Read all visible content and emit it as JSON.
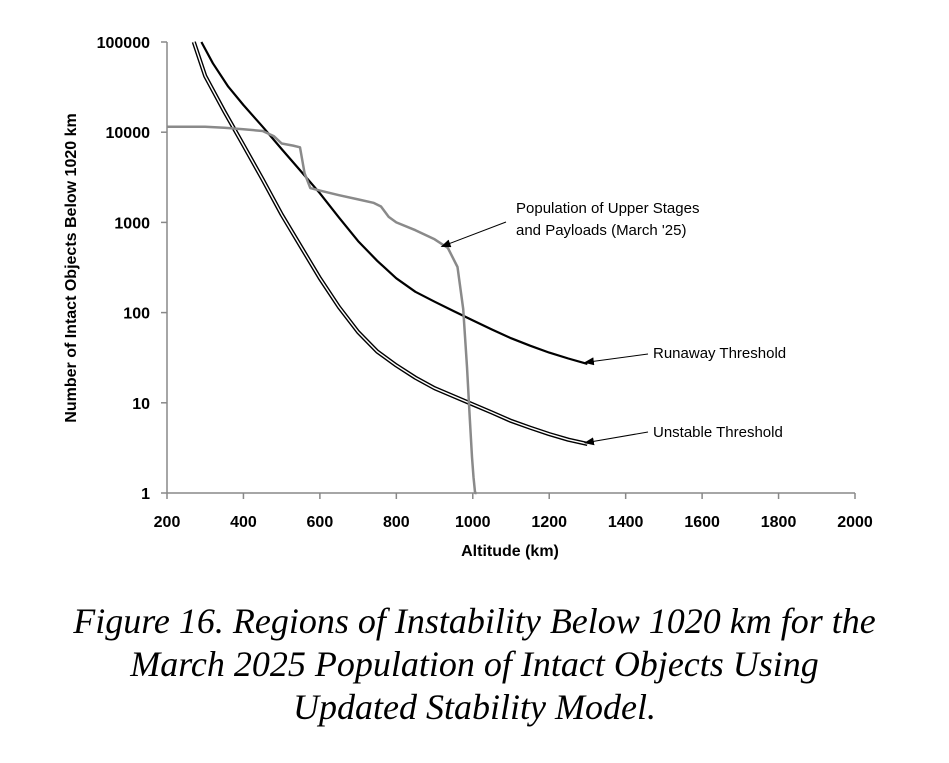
{
  "chart_data": {
    "type": "line",
    "xlabel": "Altitude (km)",
    "ylabel": "Number of Intact Objects Below 1020 km",
    "xlim": [
      200,
      2000
    ],
    "ylim": [
      1,
      100000
    ],
    "yscale": "log",
    "x_ticks": [
      "200",
      "400",
      "600",
      "800",
      "1000",
      "1200",
      "1400",
      "1600",
      "1800",
      "2000"
    ],
    "y_ticks": [
      "1",
      "10",
      "100",
      "1000",
      "10000",
      "100000"
    ],
    "series": [
      {
        "name": "Runaway Threshold",
        "style": "solid-black",
        "x": [
          290,
          320,
          360,
          400,
          450,
          500,
          550,
          600,
          650,
          700,
          750,
          800,
          850,
          900,
          950,
          1000,
          1050,
          1100,
          1150,
          1200,
          1250,
          1300
        ],
        "y": [
          100000,
          58000,
          32000,
          20000,
          11500,
          6500,
          3700,
          2100,
          1130,
          620,
          375,
          240,
          170,
          132,
          104,
          82,
          65,
          52,
          43,
          36,
          31,
          27
        ]
      },
      {
        "name": "Unstable Threshold",
        "style": "double-black",
        "x": [
          270,
          300,
          350,
          400,
          450,
          500,
          550,
          600,
          650,
          700,
          750,
          800,
          850,
          900,
          950,
          1000,
          1050,
          1100,
          1150,
          1200,
          1250,
          1300
        ],
        "y": [
          100000,
          42000,
          17000,
          7200,
          3000,
          1220,
          540,
          240,
          115,
          61,
          37,
          26,
          19,
          14.5,
          11.8,
          9.6,
          7.8,
          6.3,
          5.3,
          4.5,
          3.9,
          3.5
        ]
      },
      {
        "name": "Population of Upper Stages and Payloads (March '25)",
        "style": "gray",
        "x": [
          200,
          300,
          350,
          400,
          450,
          480,
          500,
          530,
          548,
          560,
          575,
          600,
          650,
          700,
          740,
          760,
          780,
          800,
          850,
          900,
          935,
          960,
          975,
          985,
          992,
          998,
          1002,
          1006,
          1010
        ],
        "y": [
          11500,
          11500,
          11200,
          10800,
          10300,
          9000,
          7500,
          7100,
          6800,
          3500,
          2400,
          2250,
          2000,
          1800,
          1650,
          1500,
          1150,
          1000,
          820,
          650,
          520,
          320,
          110,
          25,
          7,
          2.5,
          1.5,
          1,
          1
        ]
      }
    ],
    "annotations": [
      {
        "lines": [
          "Population of Upper Stages",
          "and Payloads (March '25)"
        ],
        "arrow_to": [
          955,
          540
        ],
        "series_index": 2
      },
      {
        "lines": [
          "Runaway Threshold"
        ],
        "arrow_to": [
          1330,
          28
        ],
        "series_index": 0
      },
      {
        "lines": [
          "Unstable Threshold"
        ],
        "arrow_to": [
          1330,
          3.6
        ],
        "series_index": 1
      }
    ]
  },
  "caption": {
    "lines": [
      "Figure 16. Regions of Instability Below 1020 km for the",
      "March 2025 Population of Intact Objects Using",
      "Updated Stability Model."
    ]
  }
}
